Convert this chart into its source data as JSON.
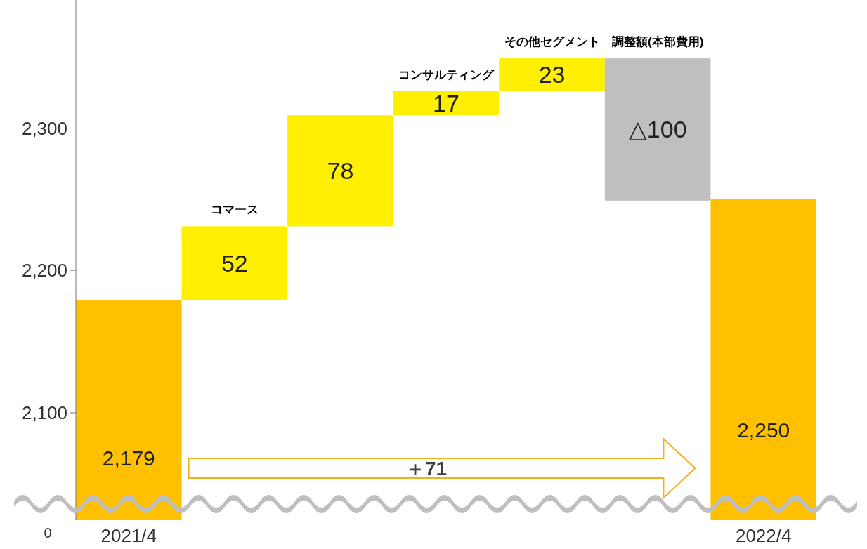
{
  "chart_data": {
    "type": "bar",
    "categories": [
      "2021/4",
      "コマース",
      null,
      "コンサルティング",
      "その他セグメント",
      "調整額(本部費用)",
      "2022/4"
    ],
    "values": [
      2179,
      52,
      78,
      17,
      23,
      -100,
      2250
    ],
    "base": [
      null,
      2179,
      2231,
      2309,
      2326,
      2349,
      null
    ],
    "colors": [
      "#ffc000",
      "#ffef00",
      "#ffef00",
      "#ffef00",
      "#ffef00",
      "#bfbfbf",
      "#ffc000"
    ],
    "value_labels": [
      "2,179",
      "52",
      "78",
      "17",
      "23",
      "△100",
      "2,250"
    ],
    "ylim": [
      2025,
      2390
    ],
    "yticks": [
      {
        "value": 2100,
        "label": "2,100"
      },
      {
        "value": 2200,
        "label": "2,200"
      },
      {
        "value": 2300,
        "label": "2,300"
      }
    ],
    "annotations": [
      "＋71",
      "0"
    ],
    "grid": false
  }
}
